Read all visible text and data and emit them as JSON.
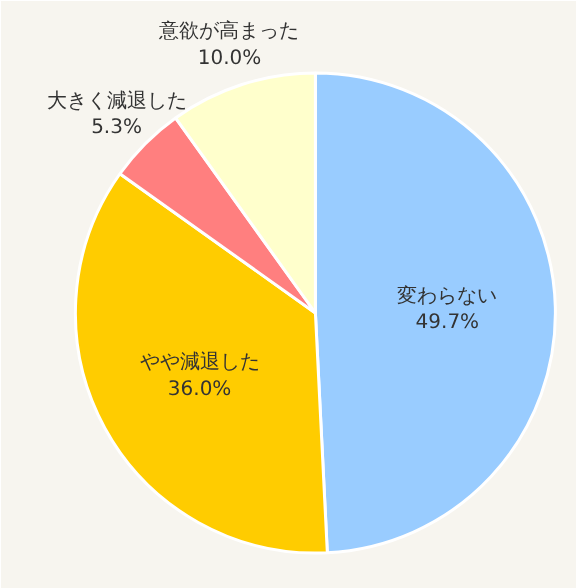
{
  "chart_data": {
    "type": "pie",
    "categories": [
      "変わらない",
      "やや減退した",
      "大きく減退した",
      "意欲が高まった"
    ],
    "values": [
      49.7,
      36.0,
      5.3,
      10.0
    ],
    "value_labels": [
      "49.7%",
      "36.0%",
      "5.3%",
      "10.0%"
    ],
    "colors": [
      "#99ccff",
      "#ffcc00",
      "#ff7f7f",
      "#ffffcc"
    ],
    "legend": false
  }
}
